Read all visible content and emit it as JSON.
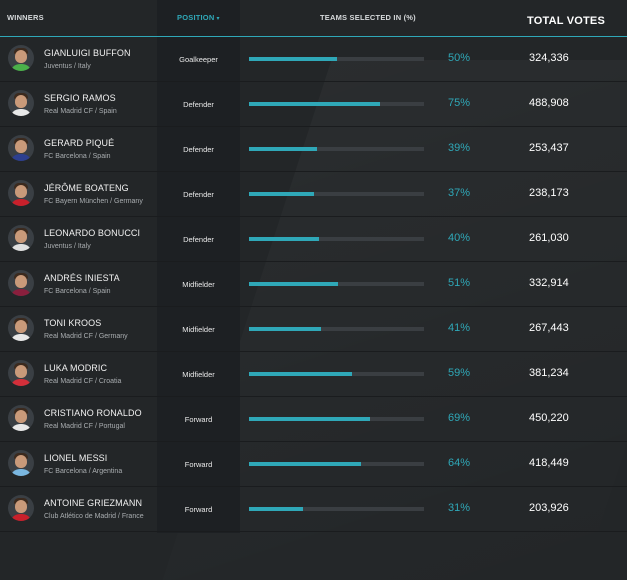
{
  "header": {
    "winners": "WINNERS",
    "position": "POSITION",
    "teams_selected": "TEAMS SELECTED IN (%)",
    "total_votes": "TOTAL VOTES"
  },
  "colors": {
    "accent": "#2fa8b8",
    "background": "#232628"
  },
  "players": [
    {
      "name": "GIANLUIGI BUFFON",
      "club": "Juventus / Italy",
      "position": "Goalkeeper",
      "pct_label": "50%",
      "pct": 50,
      "votes": "324,336",
      "shirt": "#4bb04a"
    },
    {
      "name": "SERGIO RAMOS",
      "club": "Real Madrid CF / Spain",
      "position": "Defender",
      "pct_label": "75%",
      "pct": 75,
      "votes": "488,908",
      "shirt": "#e8e8e8"
    },
    {
      "name": "GERARD PIQUÉ",
      "club": "FC Barcelona / Spain",
      "position": "Defender",
      "pct_label": "39%",
      "pct": 39,
      "votes": "253,437",
      "shirt": "#2d3f8f"
    },
    {
      "name": "JÉRÔME BOATENG",
      "club": "FC Bayern München / Germany",
      "position": "Defender",
      "pct_label": "37%",
      "pct": 37,
      "votes": "238,173",
      "shirt": "#c8202b"
    },
    {
      "name": "LEONARDO BONUCCI",
      "club": "Juventus / Italy",
      "position": "Defender",
      "pct_label": "40%",
      "pct": 40,
      "votes": "261,030",
      "shirt": "#e0e0e0"
    },
    {
      "name": "ANDRÉS INIESTA",
      "club": "FC Barcelona / Spain",
      "position": "Midfielder",
      "pct_label": "51%",
      "pct": 51,
      "votes": "332,914",
      "shirt": "#8a1f3d"
    },
    {
      "name": "TONI KROOS",
      "club": "Real Madrid CF / Germany",
      "position": "Midfielder",
      "pct_label": "41%",
      "pct": 41,
      "votes": "267,443",
      "shirt": "#e8e8e8"
    },
    {
      "name": "LUKA MODRIC",
      "club": "Real Madrid CF / Croatia",
      "position": "Midfielder",
      "pct_label": "59%",
      "pct": 59,
      "votes": "381,234",
      "shirt": "#d32f3a"
    },
    {
      "name": "CRISTIANO RONALDO",
      "club": "Real Madrid CF / Portugal",
      "position": "Forward",
      "pct_label": "69%",
      "pct": 69,
      "votes": "450,220",
      "shirt": "#e8e8e8"
    },
    {
      "name": "LIONEL MESSI",
      "club": "FC Barcelona / Argentina",
      "position": "Forward",
      "pct_label": "64%",
      "pct": 64,
      "votes": "418,449",
      "shirt": "#7ab7e0"
    },
    {
      "name": "ANTOINE GRIEZMANN",
      "club": "Club Atlético de Madrid / France",
      "position": "Forward",
      "pct_label": "31%",
      "pct": 31,
      "votes": "203,926",
      "shirt": "#c8202b"
    }
  ]
}
